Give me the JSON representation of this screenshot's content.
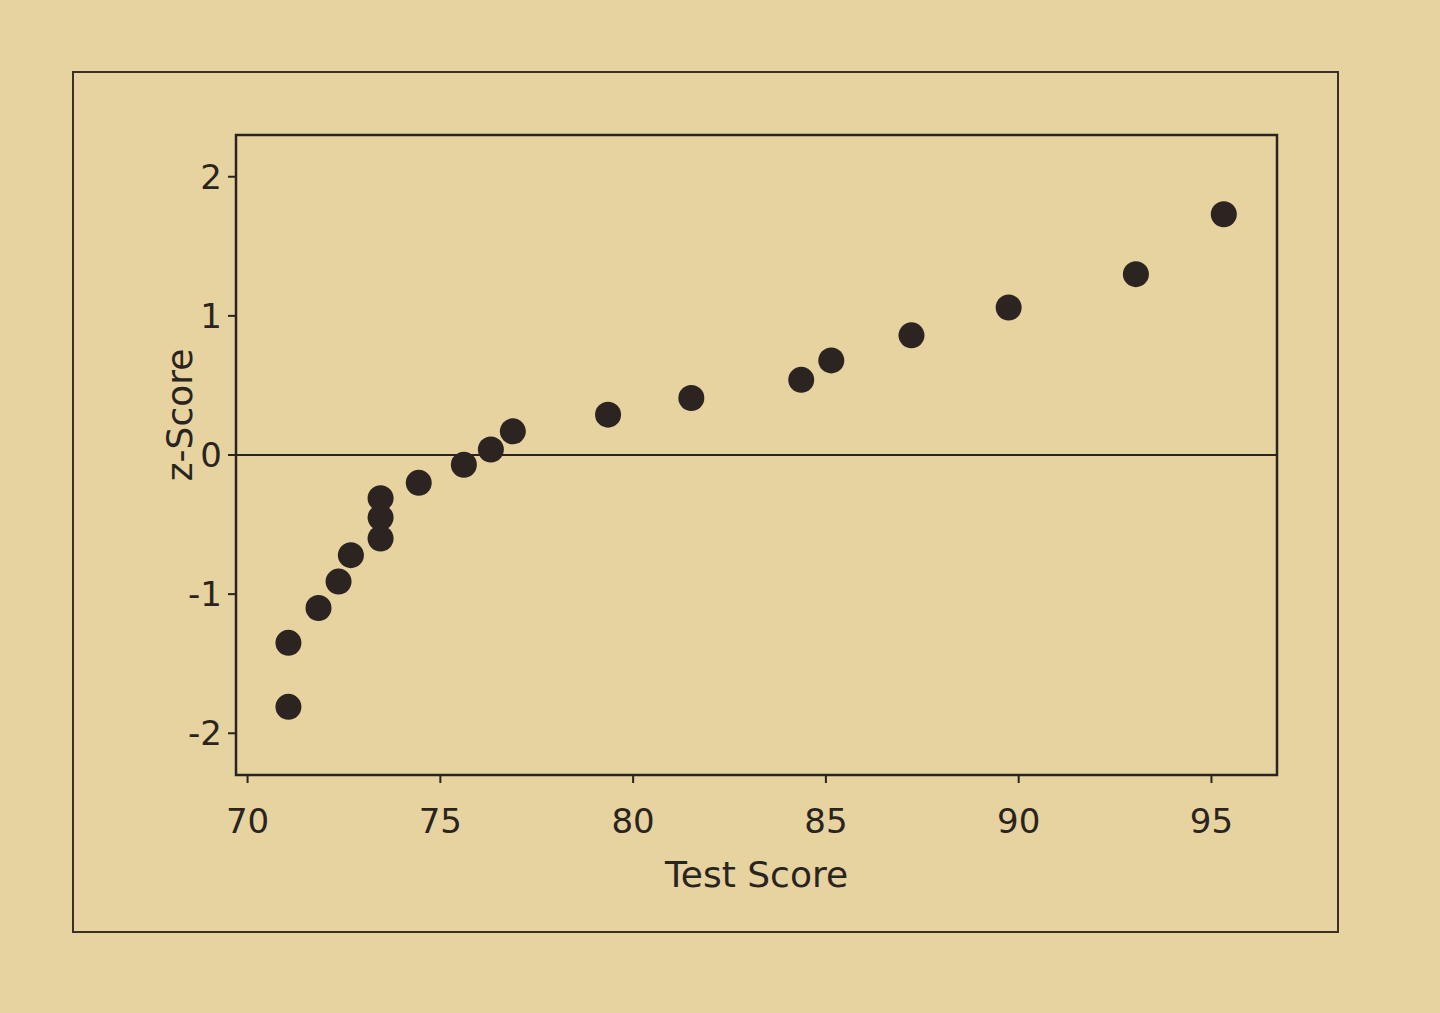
{
  "chart_data": {
    "type": "scatter",
    "x_label": "Test Score",
    "y_label": "z-Score",
    "x": [
      71.06,
      71.06,
      71.84,
      72.36,
      72.68,
      73.45,
      73.45,
      73.45,
      74.44,
      75.61,
      76.31,
      76.88,
      79.35,
      81.51,
      84.36,
      85.14,
      87.22,
      89.74,
      93.04,
      95.32
    ],
    "values": [
      -1.81,
      -1.35,
      -1.1,
      -0.91,
      -0.72,
      -0.6,
      -0.45,
      -0.31,
      -0.2,
      -0.07,
      0.04,
      0.17,
      0.29,
      0.41,
      0.54,
      0.68,
      0.86,
      1.06,
      1.3,
      1.73
    ],
    "color": "#2b2420",
    "marker": "circle",
    "xlim": [
      69.7,
      96.7
    ],
    "ylim": [
      -2.3,
      2.3
    ],
    "xticks": [
      70,
      75,
      80,
      85,
      90,
      95
    ],
    "yticks": [
      -2,
      -1,
      0,
      1,
      2
    ],
    "hlines": [
      0
    ],
    "grid": false
  }
}
